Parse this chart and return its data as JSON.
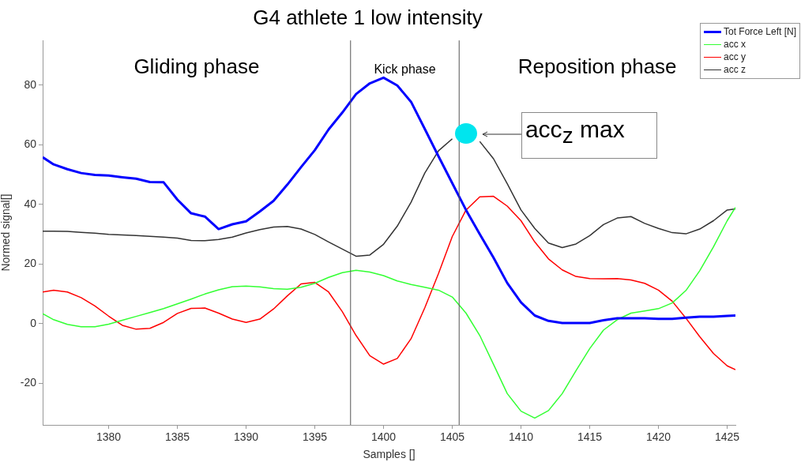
{
  "chart_data": {
    "type": "line",
    "title": "G4 athlete 1 low intensity",
    "xlabel": "Samples []",
    "ylabel": "Normed signal[]",
    "x": [
      1375.2,
      1376,
      1377,
      1378,
      1379,
      1380,
      1381,
      1382,
      1383,
      1384,
      1385,
      1386,
      1387,
      1388,
      1389,
      1390,
      1391,
      1392,
      1393,
      1394,
      1395,
      1396,
      1397,
      1398,
      1399,
      1400,
      1401,
      1402,
      1403,
      1404,
      1405,
      1406,
      1407,
      1408,
      1409,
      1410,
      1411,
      1412,
      1413,
      1414,
      1415,
      1416,
      1417,
      1418,
      1419,
      1420,
      1421,
      1422,
      1423,
      1424,
      1425,
      1425.6
    ],
    "series": [
      {
        "name": "Tot Force Left [N]",
        "color": "#0000ff",
        "values": [
          55.8,
          53.4,
          51.8,
          50.5,
          49.9,
          49.7,
          49.1,
          48.6,
          47.5,
          47.4,
          41.6,
          37.0,
          35.9,
          31.7,
          33.3,
          34.3,
          37.6,
          41.2,
          46.6,
          52.5,
          58.2,
          65.1,
          70.8,
          77.0,
          80.6,
          82.5,
          79.9,
          74.4,
          65.3,
          56.1,
          47.1,
          38.1,
          30.0,
          22.1,
          13.6,
          7.1,
          2.7,
          0.9,
          0.2,
          0.2,
          0.2,
          1.1,
          1.8,
          1.8,
          1.8,
          1.6,
          1.6,
          2.0,
          2.3,
          2.3,
          2.6,
          2.7
        ]
      },
      {
        "name": "acc x",
        "color": "#33ff33",
        "values": [
          3.3,
          1.3,
          -0.3,
          -1.1,
          -1.1,
          -0.2,
          1.1,
          2.4,
          3.7,
          5.0,
          6.6,
          8.2,
          9.9,
          11.3,
          12.4,
          12.6,
          12.3,
          11.7,
          11.5,
          12.2,
          13.5,
          15.5,
          17.1,
          17.9,
          17.3,
          16.1,
          14.3,
          13.1,
          12.2,
          11.2,
          8.9,
          3.5,
          -4.0,
          -13.7,
          -23.5,
          -29.4,
          -31.7,
          -29.2,
          -23.5,
          -15.8,
          -8.4,
          -2.2,
          1.3,
          3.5,
          4.2,
          5.0,
          6.9,
          11.1,
          17.7,
          25.7,
          34.5,
          39.0
        ]
      },
      {
        "name": "acc y",
        "color": "#ff0000",
        "values": [
          10.6,
          11.2,
          10.6,
          8.7,
          5.9,
          2.5,
          -0.6,
          -1.9,
          -1.6,
          0.4,
          3.4,
          5.1,
          5.2,
          3.5,
          1.5,
          0.4,
          1.5,
          4.9,
          9.3,
          13.3,
          13.8,
          10.6,
          4.0,
          -4.0,
          -10.8,
          -13.6,
          -11.7,
          -5.1,
          5.3,
          16.8,
          29.2,
          38.1,
          42.5,
          42.7,
          39.4,
          34.5,
          27.4,
          21.7,
          18.0,
          15.8,
          15.1,
          15.0,
          15.1,
          14.6,
          13.5,
          11.2,
          7.5,
          1.8,
          -4.4,
          -10.0,
          -14.2,
          -15.5
        ]
      },
      {
        "name": "acc z",
        "color": "#333333",
        "values": [
          31.0,
          31.0,
          30.9,
          30.6,
          30.3,
          29.9,
          29.7,
          29.5,
          29.3,
          29.0,
          28.7,
          27.9,
          27.8,
          28.2,
          29.0,
          30.4,
          31.5,
          32.4,
          32.6,
          31.7,
          29.9,
          27.4,
          25.0,
          22.6,
          23.0,
          26.6,
          32.7,
          40.7,
          50.5,
          58.0,
          62.0,
          null,
          61.1,
          55.3,
          46.9,
          38.1,
          31.9,
          27.0,
          25.5,
          26.7,
          29.5,
          33.2,
          35.4,
          35.9,
          33.6,
          31.9,
          30.5,
          30.1,
          31.7,
          34.5,
          38.1,
          38.5
        ]
      }
    ],
    "xlim": [
      1375.2,
      1425.6
    ],
    "xticks": [
      1380,
      1385,
      1390,
      1395,
      1400,
      1405,
      1410,
      1415,
      1420,
      1425
    ],
    "ylim": [
      -34,
      95
    ],
    "yticks": [
      -20,
      0,
      20,
      40,
      60,
      80
    ],
    "grid": false,
    "legend": "top right",
    "marker": "none",
    "line_style": "solid",
    "ref_lines": [
      {
        "axis": "x",
        "value": 1397.6,
        "color": "#555555"
      },
      {
        "axis": "x",
        "value": 1405.5,
        "color": "#555555"
      }
    ],
    "annotations": [
      "Gliding phase",
      "Kick phase",
      "Reposition phase",
      {
        "text": "acc$_{z}$ max",
        "x": 1406,
        "y": 63.5
      }
    ]
  }
}
